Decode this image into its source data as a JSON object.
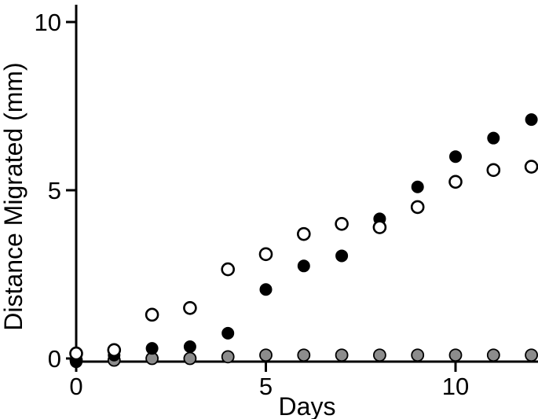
{
  "chart_data": {
    "type": "scatter",
    "title": "",
    "xlabel": "Days",
    "ylabel": "Distance Migrated (mm)",
    "xlim": [
      0,
      12
    ],
    "ylim": [
      -0.3,
      10.3
    ],
    "grid": false,
    "legend": "none",
    "axis_color": "#000000",
    "background_color": "#ffffff",
    "x_ticks": [
      "0",
      "5",
      "10"
    ],
    "x_tick_values": [
      0,
      5,
      10
    ],
    "y_ticks": [
      "0",
      "5",
      "10"
    ],
    "y_tick_values": [
      0,
      5,
      10
    ],
    "x": [
      0,
      1,
      2,
      3,
      4,
      5,
      6,
      7,
      8,
      9,
      10,
      11,
      12
    ],
    "series": [
      {
        "name": "gray-filled-circles",
        "marker": "circle",
        "fill": "#8c8c8c",
        "stroke": "#000000",
        "values": [
          -0.05,
          -0.05,
          0.0,
          0.0,
          0.05,
          0.1,
          0.1,
          0.1,
          0.1,
          0.1,
          0.1,
          0.1,
          0.1
        ]
      },
      {
        "name": "black-filled-circles",
        "marker": "circle",
        "fill": "#000000",
        "stroke": "#000000",
        "values": [
          -0.1,
          0.1,
          0.3,
          0.35,
          0.75,
          2.05,
          2.75,
          3.05,
          4.15,
          5.1,
          6.0,
          6.55,
          7.1
        ]
      },
      {
        "name": "white-open-circles",
        "marker": "circle",
        "fill": "#ffffff",
        "stroke": "#000000",
        "values": [
          0.15,
          0.25,
          1.3,
          1.5,
          2.65,
          3.1,
          3.7,
          4.0,
          3.9,
          4.5,
          5.25,
          5.6,
          5.7
        ]
      }
    ]
  }
}
